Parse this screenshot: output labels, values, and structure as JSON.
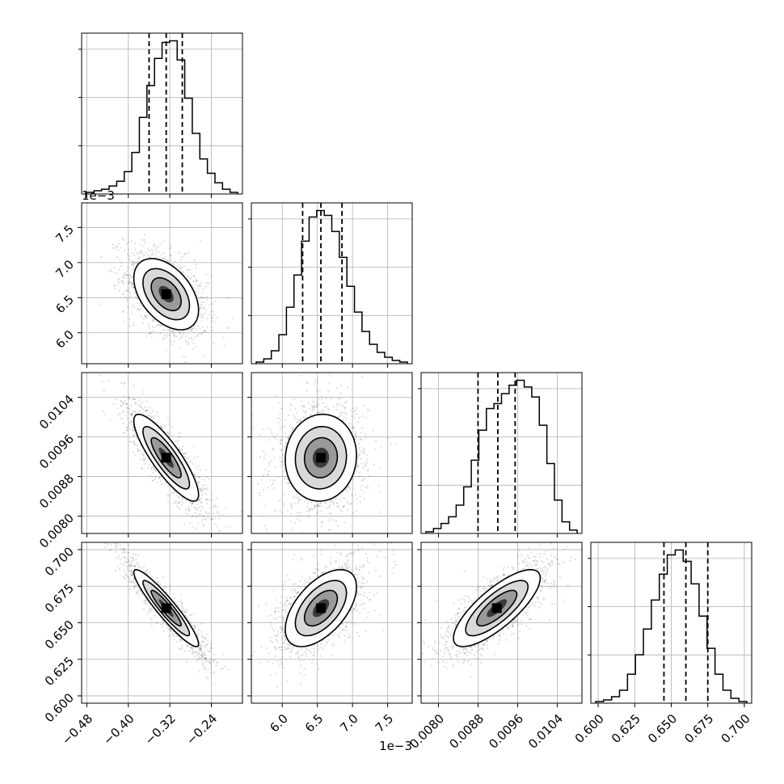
{
  "chart_data": {
    "type": "corner",
    "grid": true,
    "params": [
      {
        "range": [
          -0.49,
          -0.18
        ],
        "ticks": [
          -0.48,
          -0.4,
          -0.32,
          -0.24
        ],
        "tick_labels": [
          "−0.48",
          "−0.40",
          "−0.32",
          "−0.24"
        ],
        "offset": "",
        "quantiles": [
          -0.36,
          -0.327,
          -0.296
        ],
        "hist_counts": [
          1,
          2,
          3,
          5,
          8,
          14,
          26,
          48,
          68,
          85,
          95,
          96,
          84,
          60,
          38,
          22,
          13,
          7,
          3,
          1
        ]
      },
      {
        "range": [
          5.56,
          7.85
        ],
        "ticks": [
          6.0,
          6.5,
          7.0,
          7.5
        ],
        "tick_labels": [
          "6.0",
          "6.5",
          "7.0",
          "7.5"
        ],
        "offset": "1e−3",
        "quantiles": [
          6.29,
          6.55,
          6.85
        ],
        "hist_counts": [
          1,
          3,
          8,
          18,
          35,
          55,
          76,
          91,
          95,
          92,
          82,
          66,
          48,
          32,
          20,
          12,
          7,
          4,
          2,
          1
        ]
      },
      {
        "range": [
          0.00765,
          0.0109
        ],
        "ticks": [
          0.008,
          0.0088,
          0.0096,
          0.0104
        ],
        "tick_labels": [
          "0.0080",
          "0.0088",
          "0.0096",
          "0.0104"
        ],
        "offset": "",
        "quantiles": [
          0.0088,
          0.0092,
          0.00955
        ],
        "hist_counts": [
          1,
          3,
          6,
          10,
          17,
          28,
          44,
          62,
          75,
          78,
          84,
          89,
          92,
          88,
          82,
          65,
          42,
          20,
          7,
          2
        ]
      },
      {
        "range": [
          0.595,
          0.705
        ],
        "ticks": [
          0.6,
          0.625,
          0.65,
          0.675,
          0.7
        ],
        "tick_labels": [
          "0.600",
          "0.625",
          "0.650",
          "0.675",
          "0.700"
        ],
        "offset": "",
        "quantiles": [
          0.645,
          0.66,
          0.675
        ],
        "hist_counts": [
          1,
          2,
          4,
          8,
          18,
          30,
          46,
          64,
          80,
          92,
          95,
          88,
          74,
          54,
          34,
          18,
          8,
          3,
          1
        ]
      }
    ],
    "pairs": [
      {
        "row": 1,
        "col": 0,
        "mean": [
          -0.327,
          6.55
        ],
        "std": [
          0.032,
          0.26
        ],
        "rho": -0.45
      },
      {
        "row": 2,
        "col": 0,
        "mean": [
          -0.327,
          0.00918
        ],
        "std": [
          0.032,
          0.00045
        ],
        "rho": -0.85
      },
      {
        "row": 2,
        "col": 1,
        "mean": [
          6.55,
          0.00918
        ],
        "std": [
          0.26,
          0.00045
        ],
        "rho": 0.05
      },
      {
        "row": 3,
        "col": 0,
        "mean": [
          -0.327,
          0.66
        ],
        "std": [
          0.032,
          0.0135
        ],
        "rho": -0.93
      },
      {
        "row": 3,
        "col": 1,
        "mean": [
          6.55,
          0.66
        ],
        "std": [
          0.26,
          0.0135
        ],
        "rho": 0.55
      },
      {
        "row": 3,
        "col": 2,
        "mean": [
          0.00918,
          0.66
        ],
        "std": [
          0.00045,
          0.0135
        ],
        "rho": 0.78
      }
    ]
  }
}
